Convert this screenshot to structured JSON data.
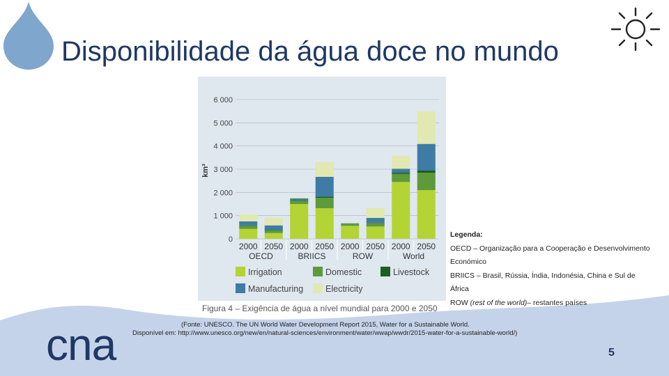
{
  "slide": {
    "title": "Disponibilidade da água doce no mundo",
    "caption": "Figura 4 – Exigência de água a nível mundial para 2000 e 2050",
    "legend_title": "Legenda:",
    "legend_oecd_1": "OECD – Organização para a Cooperação e Desenvolvimento",
    "legend_oecd_2": "Económico",
    "legend_briics_1": "BRIICS – Brasil, Rússia, Índia, Indonésia, China e Sul de",
    "legend_briics_2": "África",
    "legend_row_abbr": "ROW",
    "legend_row_italic": "(rest of the world)",
    "legend_row_rest": "– restantes países",
    "source_1": "(Fonte: UNESCO. The UN World Water Development Report 2015, Water for a Sustainable World.",
    "source_2": "Disponível em: http://www.unesco.org/new/en/natural-sciences/environment/water/wwap/wwdr/2015-water-for-a-sustainable-world/)",
    "logo": "cna",
    "page_number": "5"
  },
  "colors": {
    "title": "#1f3864",
    "irrigation": "#b4d334",
    "domestic": "#5c9a3c",
    "livestock": "#1b5e20",
    "manufacturing": "#3e7ca6",
    "electricity": "#e1e8b0",
    "wave": "#c5d3ea",
    "drop": "#7fa6cc"
  },
  "chart_data": {
    "type": "bar",
    "stacked": true,
    "ylabel": "km³",
    "ylim": [
      0,
      6000
    ],
    "yticks": [
      "0",
      "1 000",
      "2 000",
      "3 000",
      "4 000",
      "5 000",
      "6 000"
    ],
    "categories": [
      "2000",
      "2050",
      "2000",
      "2050",
      "2000",
      "2050",
      "2000",
      "2050"
    ],
    "groups": [
      "OECD",
      "BRIICS",
      "ROW",
      "World"
    ],
    "series": [
      {
        "name": "Irrigation",
        "values": [
          430,
          250,
          1500,
          1320,
          560,
          530,
          2450,
          2100
        ]
      },
      {
        "name": "Domestic",
        "values": [
          130,
          110,
          140,
          450,
          80,
          150,
          350,
          750
        ]
      },
      {
        "name": "Livestock",
        "values": [
          20,
          20,
          30,
          50,
          10,
          20,
          60,
          90
        ]
      },
      {
        "name": "Manufacturing",
        "values": [
          170,
          200,
          70,
          850,
          20,
          200,
          160,
          1150
        ]
      },
      {
        "name": "Electricity",
        "values": [
          300,
          320,
          60,
          640,
          30,
          420,
          560,
          1400
        ]
      }
    ],
    "legend_position": "bottom"
  }
}
